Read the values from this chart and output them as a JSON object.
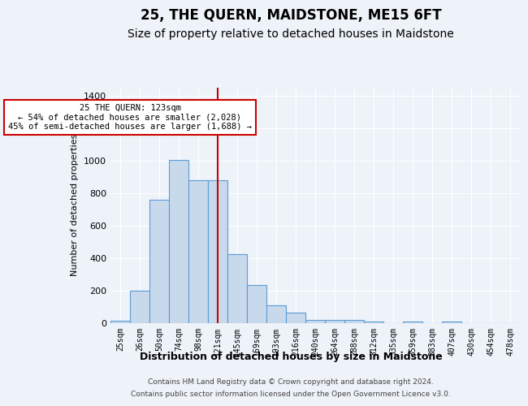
{
  "title": "25, THE QUERN, MAIDSTONE, ME15 6FT",
  "subtitle": "Size of property relative to detached houses in Maidstone",
  "xlabel": "Distribution of detached houses by size in Maidstone",
  "ylabel": "Number of detached properties",
  "categories": [
    "25sqm",
    "26sqm",
    "50sqm",
    "74sqm",
    "98sqm",
    "121sqm",
    "145sqm",
    "169sqm",
    "193sqm",
    "216sqm",
    "240sqm",
    "264sqm",
    "288sqm",
    "312sqm",
    "335sqm",
    "359sqm",
    "383sqm",
    "407sqm",
    "430sqm",
    "454sqm",
    "478sqm"
  ],
  "values": [
    15,
    200,
    760,
    1005,
    880,
    880,
    425,
    235,
    110,
    65,
    20,
    20,
    20,
    10,
    0,
    10,
    0,
    10,
    0,
    0,
    0
  ],
  "bar_color": "#c9d9ec",
  "bar_edge_color": "#5b9bd5",
  "red_line_index": 5,
  "annotation_line1": "25 THE QUERN: 123sqm",
  "annotation_line2": "← 54% of detached houses are smaller (2,028)",
  "annotation_line3": "45% of semi-detached houses are larger (1,688) →",
  "annotation_box_color": "#ffffff",
  "annotation_box_edge_color": "#cc0000",
  "ylim": [
    0,
    1450
  ],
  "yticks": [
    0,
    200,
    400,
    600,
    800,
    1000,
    1200,
    1400
  ],
  "bg_color": "#eef2f9",
  "grid_color": "#ffffff",
  "title_fontsize": 12,
  "subtitle_fontsize": 10,
  "footer_line1": "Contains HM Land Registry data © Crown copyright and database right 2024.",
  "footer_line2": "Contains public sector information licensed under the Open Government Licence v3.0."
}
